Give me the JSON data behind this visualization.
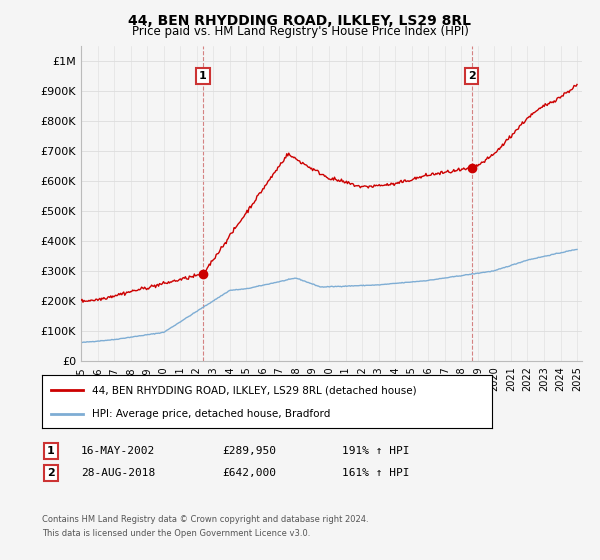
{
  "title1": "44, BEN RHYDDING ROAD, ILKLEY, LS29 8RL",
  "title2": "Price paid vs. HM Land Registry's House Price Index (HPI)",
  "legend_line1": "44, BEN RHYDDING ROAD, ILKLEY, LS29 8RL (detached house)",
  "legend_line2": "HPI: Average price, detached house, Bradford",
  "annotation1_label": "1",
  "annotation1_date": "16-MAY-2002",
  "annotation1_price": "£289,950",
  "annotation1_hpi": "191% ↑ HPI",
  "annotation2_label": "2",
  "annotation2_date": "28-AUG-2018",
  "annotation2_price": "£642,000",
  "annotation2_hpi": "161% ↑ HPI",
  "footnote1": "Contains HM Land Registry data © Crown copyright and database right 2024.",
  "footnote2": "This data is licensed under the Open Government Licence v3.0.",
  "sale_color": "#cc0000",
  "hpi_color": "#7eadd4",
  "ylim_min": 0,
  "ylim_max": 1050000,
  "background_color": "#f5f5f5"
}
